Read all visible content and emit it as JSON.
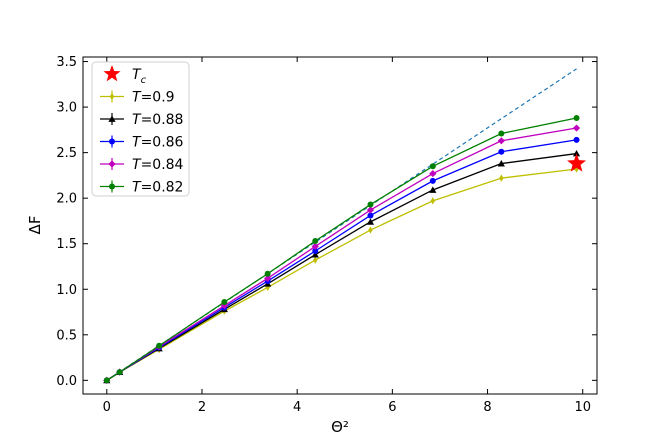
{
  "chart_data": {
    "type": "line",
    "xlabel": "Θ²",
    "ylabel": "ΔF",
    "xlim": [
      -0.5,
      10.3
    ],
    "ylim": [
      -0.15,
      3.55
    ],
    "x_ticks": [
      0,
      2,
      4,
      6,
      8,
      10
    ],
    "y_ticks": [
      0.0,
      0.5,
      1.0,
      1.5,
      2.0,
      2.5,
      3.0,
      3.5
    ],
    "x_tick_labels": [
      "0",
      "2",
      "4",
      "6",
      "8",
      "10"
    ],
    "y_tick_labels": [
      "0.0",
      "0.5",
      "1.0",
      "1.5",
      "2.0",
      "2.5",
      "3.0",
      "3.5"
    ],
    "grid": false,
    "legend_position": "top-left",
    "legend": {
      "Tc": {
        "var": "T",
        "sub": "c"
      },
      "series_prefix": "T",
      "series_suffixes": [
        "=0.9",
        "=0.88",
        "=0.86",
        "=0.84",
        "=0.82"
      ]
    },
    "dashed_line": {
      "color": "#1f77b4",
      "x": [
        0,
        9.87
      ],
      "y": [
        0,
        3.42
      ]
    },
    "critical_point": {
      "name": "Tc",
      "x": 9.87,
      "y": 2.38,
      "color": "#ff0000"
    },
    "x": [
      0,
      0.27,
      1.1,
      2.47,
      3.38,
      4.38,
      5.54,
      6.85,
      8.29,
      9.87
    ],
    "series": [
      {
        "name": "T=0.9",
        "color": "#bfbf00",
        "marker": "thin_diamond",
        "values": [
          0,
          0.09,
          0.34,
          0.76,
          1.02,
          1.32,
          1.65,
          1.97,
          2.22,
          2.32
        ]
      },
      {
        "name": "T=0.88",
        "color": "#000000",
        "marker": "triangle",
        "values": [
          0,
          0.09,
          0.35,
          0.78,
          1.06,
          1.38,
          1.74,
          2.09,
          2.38,
          2.49
        ]
      },
      {
        "name": "T=0.86",
        "color": "#0000ff",
        "marker": "circle",
        "values": [
          0,
          0.09,
          0.36,
          0.8,
          1.09,
          1.42,
          1.81,
          2.19,
          2.51,
          2.64
        ]
      },
      {
        "name": "T=0.84",
        "color": "#bf00bf",
        "marker": "diamond",
        "values": [
          0,
          0.09,
          0.37,
          0.82,
          1.12,
          1.47,
          1.87,
          2.27,
          2.63,
          2.77
        ]
      },
      {
        "name": "T=0.82",
        "color": "#008000",
        "marker": "circle",
        "values": [
          0,
          0.09,
          0.38,
          0.86,
          1.17,
          1.53,
          1.93,
          2.35,
          2.71,
          2.88
        ]
      }
    ]
  }
}
